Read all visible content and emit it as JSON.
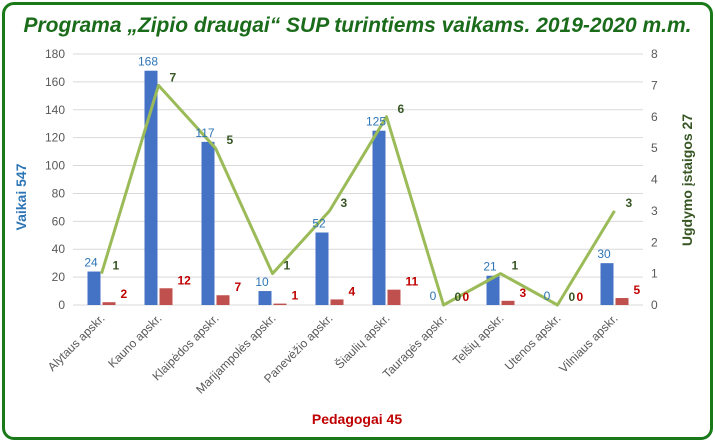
{
  "title": "Programa „Zipio draugai“ SUP turintiems vaikams. 2019-2020 m.m.",
  "colors": {
    "frame": "#1a7a1a",
    "title": "#1a6b1a",
    "vaikai": "#4472c4",
    "pedagogai": "#c0504d",
    "ugdymo": "#9bbb59",
    "grid": "#d9d9d9"
  },
  "chart_data": {
    "type": "bar",
    "categories": [
      "Alytaus apskr.",
      "Kauno apskr.",
      "Klaipėdos apskr.",
      "Marijampolės apskr.",
      "Panevėžio apskr.",
      "Šiaulių apskr.",
      "Tauragės apskr.",
      "Telšių apskr.",
      "Utenos apskr.",
      "Vilniaus apskr."
    ],
    "series": [
      {
        "name": "Vaikai 547",
        "type": "bar",
        "axis": "left",
        "values": [
          24,
          168,
          117,
          10,
          52,
          125,
          0,
          21,
          0,
          30
        ]
      },
      {
        "name": "Pedagogai 45",
        "type": "bar",
        "axis": "left",
        "values": [
          2,
          12,
          7,
          1,
          4,
          11,
          0,
          3,
          0,
          5
        ]
      },
      {
        "name": "Ugdymo įstaigos 27",
        "type": "line",
        "axis": "right",
        "values": [
          1,
          7,
          5,
          1,
          3,
          6,
          0,
          1,
          0,
          3
        ]
      }
    ],
    "y_left": {
      "label": "Vaikai 547",
      "min": 0,
      "max": 180,
      "ticks": [
        0,
        20,
        40,
        60,
        80,
        100,
        120,
        140,
        160,
        180
      ]
    },
    "y_right": {
      "label": "Ugdymo įstaigos 27",
      "min": 0,
      "max": 8,
      "ticks": [
        0,
        1,
        2,
        3,
        4,
        5,
        6,
        7,
        8
      ]
    },
    "xlabel": "Pedagogai 45",
    "grid": true
  }
}
